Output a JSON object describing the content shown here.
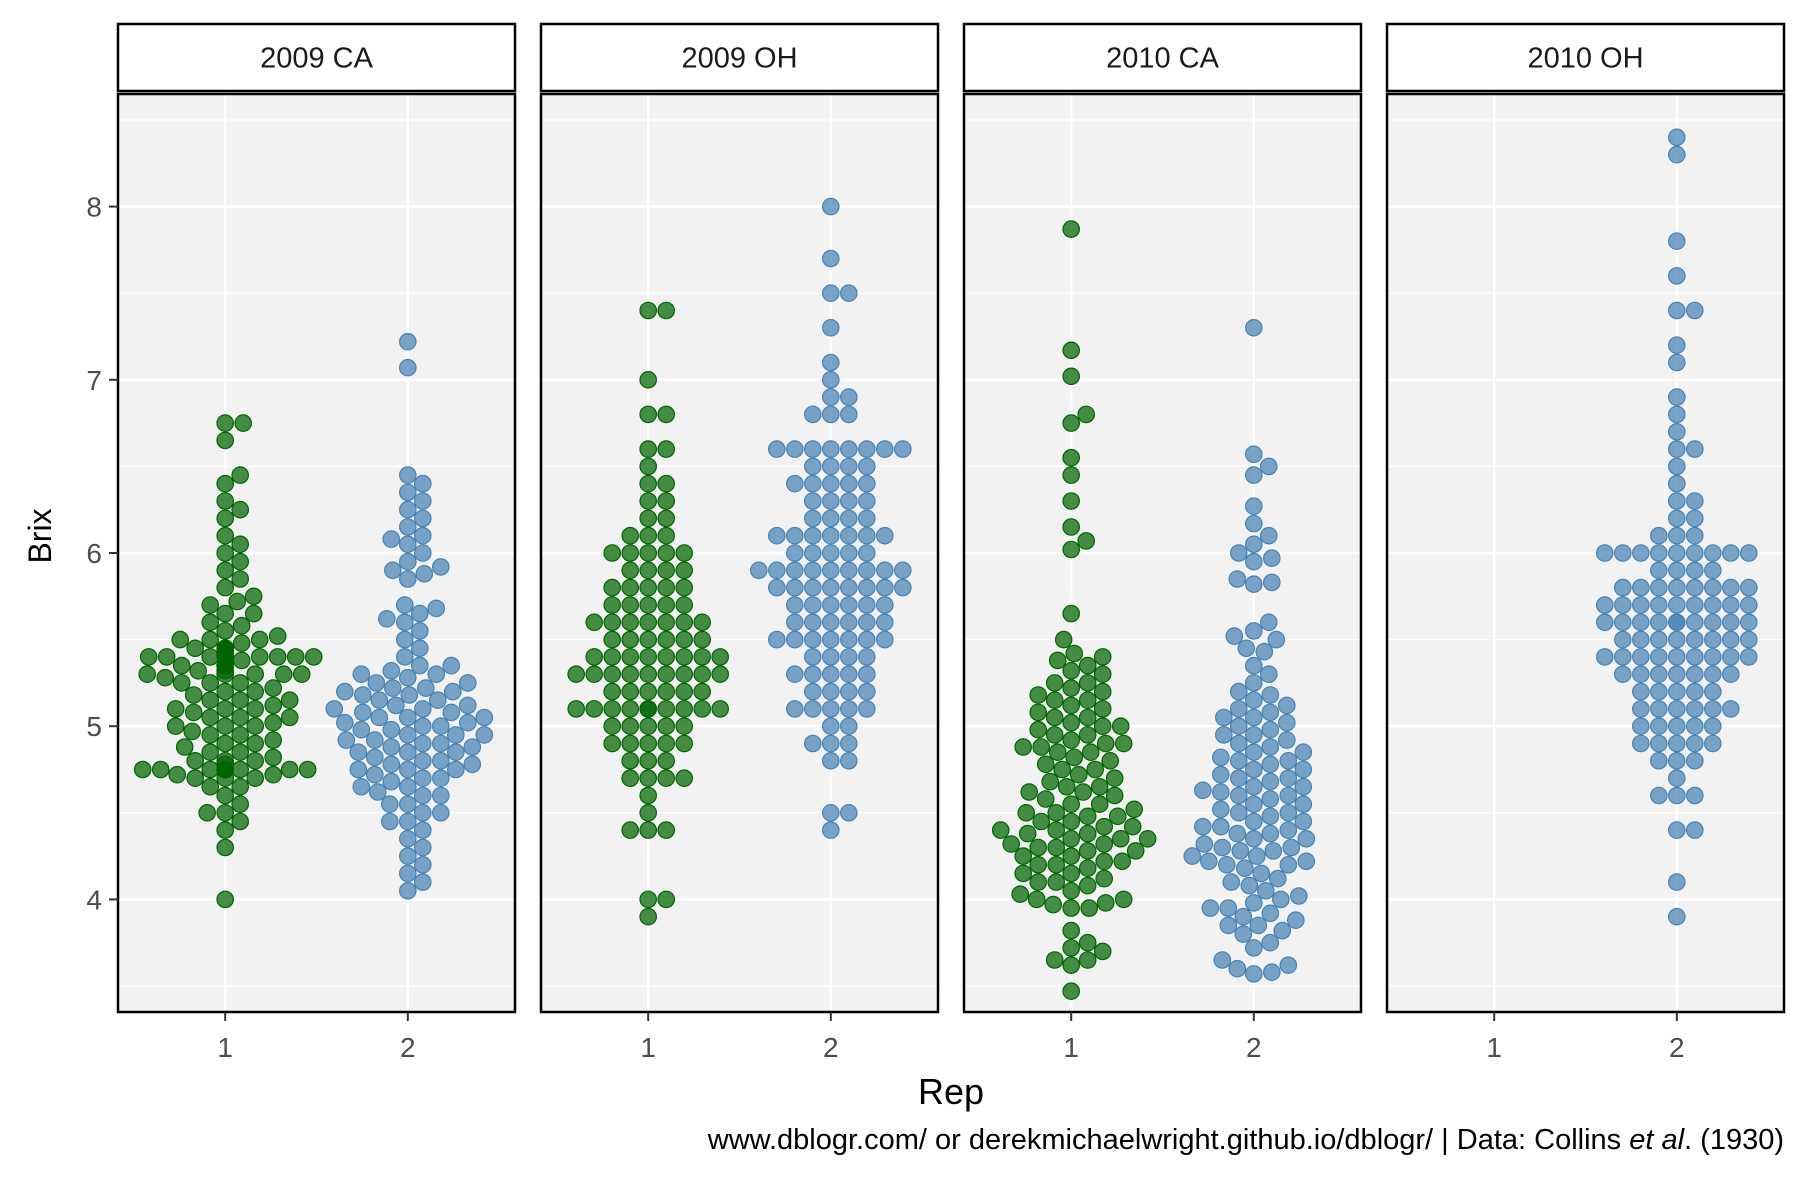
{
  "chart_data": {
    "type": "scatter",
    "subtype": "beeswarm-facets",
    "ylabel": "Brix",
    "xlabel": "Rep",
    "x_categories": [
      "1",
      "2"
    ],
    "y_ticks": [
      4,
      5,
      6,
      7,
      8
    ],
    "ylim": [
      3.35,
      8.65
    ],
    "grid": true,
    "colors": {
      "rep1": "#006400",
      "rep2": "#4682B4",
      "panel_bg": "#F2F2F2",
      "grid": "#FFFFFF"
    },
    "facets": [
      {
        "label": "2009 CA",
        "rep1": [
          4.0,
          4.3,
          4.4,
          4.45,
          4.5,
          4.5,
          4.55,
          4.6,
          4.65,
          4.65,
          4.7,
          4.7,
          4.7,
          4.72,
          4.72,
          4.75,
          4.75,
          4.75,
          4.75,
          4.75,
          4.75,
          4.75,
          4.75,
          4.75,
          4.75,
          4.78,
          4.8,
          4.8,
          4.8,
          4.82,
          4.85,
          4.85,
          4.88,
          4.9,
          4.9,
          4.92,
          4.95,
          4.95,
          4.97,
          5.0,
          5.0,
          5.0,
          5.02,
          5.05,
          5.05,
          5.05,
          5.08,
          5.1,
          5.1,
          5.1,
          5.12,
          5.15,
          5.15,
          5.15,
          5.18,
          5.2,
          5.2,
          5.22,
          5.25,
          5.25,
          5.25,
          5.28,
          5.3,
          5.3,
          5.3,
          5.3,
          5.3,
          5.32,
          5.32,
          5.35,
          5.35,
          5.35,
          5.35,
          5.35,
          5.35,
          5.38,
          5.4,
          5.4,
          5.4,
          5.4,
          5.4,
          5.4,
          5.4,
          5.4,
          5.42,
          5.42,
          5.45,
          5.45,
          5.45,
          5.45,
          5.45,
          5.48,
          5.5,
          5.5,
          5.5,
          5.52,
          5.55,
          5.58,
          5.6,
          5.65,
          5.65,
          5.7,
          5.72,
          5.75,
          5.8,
          5.85,
          5.9,
          5.95,
          6.0,
          6.05,
          6.1,
          6.2,
          6.25,
          6.3,
          6.4,
          6.45,
          6.65,
          6.75,
          6.75
        ],
        "rep2": [
          4.05,
          4.1,
          4.15,
          4.2,
          4.25,
          4.3,
          4.35,
          4.4,
          4.45,
          4.45,
          4.5,
          4.5,
          4.55,
          4.55,
          4.6,
          4.6,
          4.62,
          4.65,
          4.65,
          4.68,
          4.7,
          4.7,
          4.72,
          4.75,
          4.75,
          4.75,
          4.78,
          4.78,
          4.8,
          4.8,
          4.82,
          4.85,
          4.85,
          4.85,
          4.88,
          4.88,
          4.9,
          4.9,
          4.92,
          4.92,
          4.95,
          4.95,
          4.95,
          4.98,
          4.98,
          5.0,
          5.0,
          5.02,
          5.02,
          5.05,
          5.05,
          5.05,
          5.08,
          5.08,
          5.1,
          5.1,
          5.12,
          5.12,
          5.15,
          5.15,
          5.18,
          5.18,
          5.2,
          5.2,
          5.22,
          5.22,
          5.25,
          5.25,
          5.28,
          5.3,
          5.3,
          5.32,
          5.35,
          5.35,
          5.4,
          5.45,
          5.5,
          5.55,
          5.6,
          5.62,
          5.65,
          5.68,
          5.7,
          5.85,
          5.88,
          5.9,
          5.92,
          5.95,
          6.0,
          6.05,
          6.08,
          6.1,
          6.15,
          6.2,
          6.25,
          6.3,
          6.35,
          6.4,
          6.45,
          7.07,
          7.22
        ]
      },
      {
        "label": "2009 OH",
        "rep1": [
          3.9,
          4.0,
          4.0,
          4.4,
          4.4,
          4.4,
          4.5,
          4.6,
          4.7,
          4.7,
          4.7,
          4.7,
          4.8,
          4.8,
          4.8,
          4.9,
          4.9,
          4.9,
          4.9,
          4.9,
          5.0,
          5.0,
          5.0,
          5.0,
          5.0,
          5.1,
          5.1,
          5.1,
          5.1,
          5.1,
          5.1,
          5.1,
          5.1,
          5.1,
          5.1,
          5.2,
          5.2,
          5.2,
          5.2,
          5.2,
          5.2,
          5.3,
          5.3,
          5.3,
          5.3,
          5.3,
          5.3,
          5.3,
          5.3,
          5.3,
          5.4,
          5.4,
          5.4,
          5.4,
          5.4,
          5.4,
          5.4,
          5.4,
          5.5,
          5.5,
          5.5,
          5.5,
          5.5,
          5.5,
          5.6,
          5.6,
          5.6,
          5.6,
          5.6,
          5.6,
          5.6,
          5.7,
          5.7,
          5.7,
          5.7,
          5.7,
          5.8,
          5.8,
          5.8,
          5.8,
          5.8,
          5.9,
          5.9,
          5.9,
          5.9,
          6.0,
          6.0,
          6.0,
          6.0,
          6.0,
          6.1,
          6.1,
          6.1,
          6.2,
          6.2,
          6.3,
          6.3,
          6.4,
          6.4,
          6.5,
          6.6,
          6.6,
          6.8,
          6.8,
          7.0,
          7.4,
          7.4
        ],
        "rep2": [
          4.4,
          4.5,
          4.5,
          4.8,
          4.8,
          4.9,
          4.9,
          4.9,
          5.0,
          5.0,
          5.1,
          5.1,
          5.1,
          5.1,
          5.1,
          5.2,
          5.2,
          5.2,
          5.2,
          5.3,
          5.3,
          5.3,
          5.3,
          5.3,
          5.4,
          5.4,
          5.4,
          5.4,
          5.5,
          5.5,
          5.5,
          5.5,
          5.5,
          5.5,
          5.5,
          5.6,
          5.6,
          5.6,
          5.6,
          5.6,
          5.6,
          5.7,
          5.7,
          5.7,
          5.7,
          5.7,
          5.7,
          5.8,
          5.8,
          5.8,
          5.8,
          5.8,
          5.8,
          5.8,
          5.8,
          5.9,
          5.9,
          5.9,
          5.9,
          5.9,
          5.9,
          5.9,
          5.9,
          5.9,
          6.0,
          6.0,
          6.0,
          6.0,
          6.0,
          6.1,
          6.1,
          6.1,
          6.1,
          6.1,
          6.1,
          6.1,
          6.2,
          6.2,
          6.2,
          6.2,
          6.3,
          6.3,
          6.3,
          6.3,
          6.4,
          6.4,
          6.4,
          6.4,
          6.4,
          6.5,
          6.5,
          6.5,
          6.5,
          6.6,
          6.6,
          6.6,
          6.6,
          6.6,
          6.6,
          6.6,
          6.6,
          6.8,
          6.8,
          6.8,
          6.9,
          6.9,
          7.0,
          7.1,
          7.3,
          7.5,
          7.5,
          7.7,
          8.0
        ]
      },
      {
        "label": "2010 CA",
        "rep1": [
          3.47,
          3.62,
          3.65,
          3.65,
          3.7,
          3.72,
          3.75,
          3.82,
          3.95,
          3.95,
          3.97,
          3.98,
          4.0,
          4.0,
          4.03,
          4.05,
          4.08,
          4.1,
          4.1,
          4.12,
          4.15,
          4.15,
          4.18,
          4.2,
          4.2,
          4.22,
          4.22,
          4.25,
          4.25,
          4.28,
          4.28,
          4.3,
          4.3,
          4.32,
          4.32,
          4.35,
          4.35,
          4.35,
          4.38,
          4.38,
          4.4,
          4.4,
          4.42,
          4.42,
          4.45,
          4.45,
          4.48,
          4.48,
          4.5,
          4.5,
          4.52,
          4.55,
          4.55,
          4.58,
          4.6,
          4.62,
          4.62,
          4.65,
          4.65,
          4.68,
          4.7,
          4.72,
          4.75,
          4.75,
          4.78,
          4.8,
          4.82,
          4.85,
          4.85,
          4.88,
          4.88,
          4.9,
          4.9,
          4.92,
          4.95,
          4.95,
          4.98,
          5.0,
          5.0,
          5.02,
          5.05,
          5.05,
          5.08,
          5.1,
          5.12,
          5.15,
          5.15,
          5.18,
          5.2,
          5.22,
          5.25,
          5.25,
          5.3,
          5.32,
          5.35,
          5.38,
          5.4,
          5.42,
          5.5,
          5.65,
          6.02,
          6.07,
          6.15,
          6.3,
          6.45,
          6.55,
          6.75,
          6.8,
          7.02,
          7.17,
          7.87
        ],
        "rep2": [
          3.57,
          3.58,
          3.6,
          3.62,
          3.65,
          3.72,
          3.75,
          3.8,
          3.82,
          3.85,
          3.85,
          3.88,
          3.9,
          3.92,
          3.95,
          3.95,
          3.98,
          4.0,
          4.02,
          4.05,
          4.08,
          4.1,
          4.12,
          4.15,
          4.18,
          4.2,
          4.2,
          4.22,
          4.22,
          4.25,
          4.25,
          4.28,
          4.28,
          4.3,
          4.3,
          4.32,
          4.35,
          4.35,
          4.38,
          4.38,
          4.4,
          4.42,
          4.42,
          4.45,
          4.45,
          4.48,
          4.5,
          4.5,
          4.52,
          4.55,
          4.55,
          4.58,
          4.6,
          4.6,
          4.62,
          4.63,
          4.65,
          4.65,
          4.68,
          4.7,
          4.7,
          4.72,
          4.75,
          4.75,
          4.78,
          4.8,
          4.8,
          4.82,
          4.85,
          4.85,
          4.88,
          4.9,
          4.92,
          4.95,
          4.95,
          4.98,
          5.0,
          5.02,
          5.05,
          5.05,
          5.08,
          5.1,
          5.12,
          5.15,
          5.18,
          5.2,
          5.25,
          5.3,
          5.35,
          5.43,
          5.45,
          5.5,
          5.52,
          5.55,
          5.6,
          5.82,
          5.83,
          5.85,
          5.95,
          5.97,
          6.0,
          6.05,
          6.1,
          6.17,
          6.27,
          6.45,
          6.5,
          6.57,
          7.3
        ]
      },
      {
        "label": "2010 OH",
        "rep1": [],
        "rep2": [
          3.9,
          4.1,
          4.4,
          4.4,
          4.6,
          4.6,
          4.6,
          4.7,
          4.8,
          4.8,
          4.8,
          4.9,
          4.9,
          4.9,
          4.9,
          4.9,
          5.0,
          5.0,
          5.0,
          5.0,
          5.0,
          5.1,
          5.1,
          5.1,
          5.1,
          5.1,
          5.1,
          5.2,
          5.2,
          5.2,
          5.2,
          5.2,
          5.3,
          5.3,
          5.3,
          5.3,
          5.3,
          5.3,
          5.3,
          5.4,
          5.4,
          5.4,
          5.4,
          5.4,
          5.4,
          5.4,
          5.4,
          5.4,
          5.5,
          5.5,
          5.5,
          5.5,
          5.5,
          5.5,
          5.5,
          5.5,
          5.6,
          5.6,
          5.6,
          5.6,
          5.6,
          5.6,
          5.6,
          5.6,
          5.6,
          5.6,
          5.7,
          5.7,
          5.7,
          5.7,
          5.7,
          5.7,
          5.7,
          5.7,
          5.7,
          5.8,
          5.8,
          5.8,
          5.8,
          5.8,
          5.8,
          5.8,
          5.8,
          5.9,
          5.9,
          5.9,
          5.9,
          6.0,
          6.0,
          6.0,
          6.0,
          6.0,
          6.0,
          6.0,
          6.0,
          6.0,
          6.1,
          6.1,
          6.1,
          6.2,
          6.2,
          6.3,
          6.3,
          6.4,
          6.5,
          6.6,
          6.6,
          6.7,
          6.8,
          6.9,
          7.1,
          7.2,
          7.4,
          7.4,
          7.6,
          7.8,
          8.3,
          8.4
        ]
      }
    ]
  },
  "caption": {
    "prefix": "www.dblogr.com/ or derekmichaelwright.github.io/dblogr/ | Data: Collins ",
    "italic": "et al",
    "suffix": ". (1930)"
  }
}
